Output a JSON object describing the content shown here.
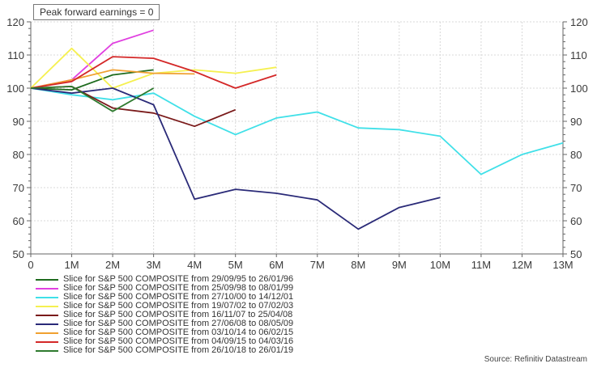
{
  "annotation": "Peak forward earnings = 0",
  "source": "Source: Refinitiv Datastream",
  "chart_data": {
    "type": "line",
    "title": "",
    "xlabel": "",
    "ylabel": "",
    "x": [
      "0",
      "1M",
      "2M",
      "3M",
      "4M",
      "5M",
      "6M",
      "7M",
      "8M",
      "9M",
      "10M",
      "11M",
      "12M",
      "13M"
    ],
    "ylim": [
      50,
      120
    ],
    "yticks": [
      50,
      60,
      70,
      80,
      90,
      100,
      110,
      120
    ],
    "grid": true,
    "legend_position": "bottom",
    "series": [
      {
        "name": "Slice for S&P 500 COMPOSITE from 29/09/95 to 26/01/96",
        "color": "#1e6b1e",
        "values": [
          100,
          99.5,
          104,
          105.5
        ]
      },
      {
        "name": "Slice for S&P 500 COMPOSITE from 25/09/98 to 08/01/99",
        "color": "#e040e0",
        "values": [
          100,
          102.5,
          113.5,
          117.5
        ]
      },
      {
        "name": "Slice for S&P 500 COMPOSITE from 27/10/00 to 14/12/01",
        "color": "#40e0e8",
        "values": [
          100,
          98,
          96.5,
          98.5,
          91.5,
          86,
          91,
          92.8,
          88,
          87.5,
          85.5,
          74,
          80,
          83.5
        ]
      },
      {
        "name": "Slice for S&P 500 COMPOSITE from 19/07/02 to 07/02/03",
        "color": "#f5f050",
        "values": [
          100,
          112,
          100,
          104.5,
          105.5,
          104.5,
          106.3
        ]
      },
      {
        "name": "Slice for S&P 500 COMPOSITE from 16/11/07 to 25/04/08",
        "color": "#7a1a1a",
        "values": [
          100,
          100.5,
          94,
          92.5,
          88.5,
          93.5
        ]
      },
      {
        "name": "Slice for S&P 500 COMPOSITE from 27/06/08 to 08/05/09",
        "color": "#2a2a78",
        "values": [
          100,
          98.5,
          100,
          95,
          66.5,
          69.5,
          68.3,
          66.3,
          57.5,
          64,
          67
        ]
      },
      {
        "name": "Slice for S&P 500 COMPOSITE from 03/10/14 to 06/02/15",
        "color": "#f0a030",
        "values": [
          100,
          102.5,
          105.5,
          104.5,
          104.3
        ]
      },
      {
        "name": "Slice for S&P 500 COMPOSITE from 04/09/15 to 04/03/16",
        "color": "#d42828",
        "values": [
          100,
          102,
          109.5,
          109,
          105,
          100,
          104
        ]
      },
      {
        "name": "Slice for S&P 500 COMPOSITE from 26/10/18 to 26/01/19",
        "color": "#2e7a2e",
        "values": [
          100,
          100.5,
          93,
          100
        ]
      }
    ]
  }
}
